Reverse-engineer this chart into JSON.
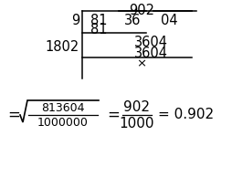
{
  "bg_color": "#ffffff",
  "quotient": "902",
  "divisor": "9",
  "dividend_parts": [
    "81",
    "36",
    "04"
  ],
  "sub1": "81",
  "side_num": "1802",
  "remainder1": "3604",
  "sub2": "3604",
  "cross": "×",
  "figsize": [
    2.54,
    1.94
  ],
  "dpi": 100
}
